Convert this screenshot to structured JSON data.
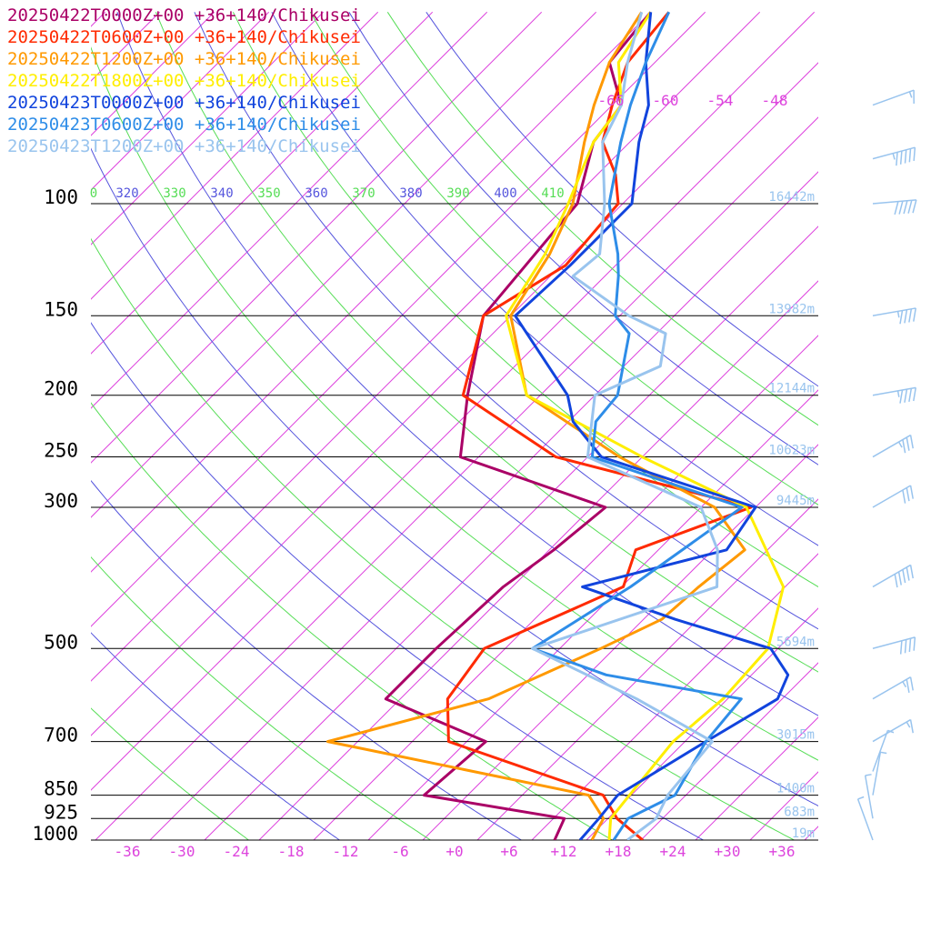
{
  "legend": [
    {
      "label": "20250422T0000Z+00 +36+140/Chikusei",
      "color": "#aa0066"
    },
    {
      "label": "20250422T0600Z+00 +36+140/Chikusei",
      "color": "#ff2a00"
    },
    {
      "label": "20250422T1200Z+00 +36+140/Chikusei",
      "color": "#ff9900"
    },
    {
      "label": "20250422T1800Z+00 +36+140/Chikusei",
      "color": "#ffee00"
    },
    {
      "label": "20250423T0000Z+00 +36+140/Chikusei",
      "color": "#1144dd"
    },
    {
      "label": "20250423T0600Z+00 +36+140/Chikusei",
      "color": "#2e8de8"
    },
    {
      "label": "20250423T1200Z+00 +36+140/Chikusei",
      "color": "#99c4ee"
    }
  ],
  "chart_data": {
    "type": "line",
    "chart_kind": "skew-T temperature sounding",
    "pressure_levels": [
      {
        "p": 100,
        "label": "100",
        "height": "16442m"
      },
      {
        "p": 150,
        "label": "150",
        "height": "13982m"
      },
      {
        "p": 200,
        "label": "200",
        "height": "12144m"
      },
      {
        "p": 250,
        "label": "250",
        "height": "10623m"
      },
      {
        "p": 300,
        "label": "300",
        "height": "9445m"
      },
      {
        "p": 500,
        "label": "500",
        "height": "5694m"
      },
      {
        "p": 700,
        "label": "700",
        "height": "3015m"
      },
      {
        "p": 850,
        "label": "850",
        "height": "1400m"
      },
      {
        "p": 925,
        "label": "925",
        "height": "683m"
      },
      {
        "p": 1000,
        "label": "1000",
        "height": "19m"
      }
    ],
    "temperature_ticks": [
      "-36",
      "-30",
      "-24",
      "-18",
      "-12",
      "-6",
      "+0",
      "+6",
      "+12",
      "+18",
      "+24",
      "+30",
      "+36"
    ],
    "skewed_isotherm_labels": [
      "-66",
      "-60",
      "-54",
      "-48"
    ],
    "theta_labels": [
      {
        "t": "0",
        "c": "#55dd55"
      },
      {
        "t": "320",
        "c": "#5555dd"
      },
      {
        "t": "330",
        "c": "#55dd55"
      },
      {
        "t": "340",
        "c": "#5555dd"
      },
      {
        "t": "350",
        "c": "#55dd55"
      },
      {
        "t": "360",
        "c": "#5555dd"
      },
      {
        "t": "370",
        "c": "#55dd55"
      },
      {
        "t": "380",
        "c": "#5555dd"
      },
      {
        "t": "390",
        "c": "#55dd55"
      },
      {
        "t": "400",
        "c": "#5555dd"
      },
      {
        "t": "410",
        "c": "#55dd55"
      }
    ],
    "series": [
      {
        "name": "20250422T0000Z+00 +36+140/Chikusei",
        "color": "#aa0066",
        "points": [
          [
            1000,
            10.5
          ],
          [
            925,
            9.2
          ],
          [
            850,
            -8.8
          ],
          [
            700,
            -7.9
          ],
          [
            600,
            -23.6
          ],
          [
            500,
            -23.6
          ],
          [
            400,
            -23.0
          ],
          [
            350,
            -21.5
          ],
          [
            300,
            -20.5
          ],
          [
            250,
            -42
          ],
          [
            200,
            -48
          ],
          [
            150,
            -55
          ],
          [
            100,
            -57
          ],
          [
            80,
            -62
          ],
          [
            70,
            -63
          ],
          [
            60,
            -69
          ],
          [
            50,
            -70
          ]
        ]
      },
      {
        "name": "20250422T0600Z+00 +36+140/Chikusei",
        "color": "#ff2a00",
        "points": [
          [
            1000,
            20.2
          ],
          [
            925,
            15.0
          ],
          [
            850,
            10.9
          ],
          [
            700,
            -12.0
          ],
          [
            600,
            -16.8
          ],
          [
            500,
            -18.3
          ],
          [
            400,
            -9.8
          ],
          [
            350,
            -12.5
          ],
          [
            300,
            -4.5
          ],
          [
            250,
            -31.5
          ],
          [
            200,
            -48.5
          ],
          [
            150,
            -55.0
          ],
          [
            125,
            -51.5
          ],
          [
            100,
            -52.5
          ],
          [
            90,
            -56
          ],
          [
            80,
            -61
          ],
          [
            70,
            -64
          ],
          [
            60,
            -67
          ],
          [
            50,
            -68
          ]
        ]
      },
      {
        "name": "20250422T1200Z+00 +36+140/Chikusei",
        "color": "#ff9900",
        "points": [
          [
            1000,
            14.6
          ],
          [
            925,
            13.5
          ],
          [
            850,
            9.3
          ],
          [
            700,
            -25.3
          ],
          [
            600,
            -12.3
          ],
          [
            500,
            -5.5
          ],
          [
            450,
            -2.0
          ],
          [
            400,
            -1.5
          ],
          [
            350,
            -0.5
          ],
          [
            300,
            -8.5
          ],
          [
            250,
            -24.5
          ],
          [
            200,
            -41.5
          ],
          [
            150,
            -52.0
          ],
          [
            120,
            -54.5
          ],
          [
            100,
            -57.5
          ],
          [
            80,
            -63
          ],
          [
            70,
            -66
          ],
          [
            60,
            -69
          ],
          [
            50,
            -71
          ]
        ]
      },
      {
        "name": "20250422T1800Z+00 +36+140/Chikusei",
        "color": "#ffee00",
        "points": [
          [
            1000,
            16.5
          ],
          [
            925,
            14.3
          ],
          [
            850,
            13.8
          ],
          [
            700,
            12.7
          ],
          [
            600,
            13.5
          ],
          [
            500,
            12.9
          ],
          [
            400,
            7.8
          ],
          [
            300,
            -5.0
          ],
          [
            250,
            -22.0
          ],
          [
            200,
            -41.5
          ],
          [
            150,
            -52.5
          ],
          [
            120,
            -55.0
          ],
          [
            100,
            -58.0
          ],
          [
            80,
            -62
          ],
          [
            70,
            -63
          ],
          [
            60,
            -68
          ],
          [
            50,
            -70
          ]
        ]
      },
      {
        "name": "20250423T0000Z+00 +36+140/Chikusei",
        "color": "#1144dd",
        "points": [
          [
            1000,
            13.3
          ],
          [
            925,
            13.0
          ],
          [
            850,
            12.5
          ],
          [
            700,
            16.3
          ],
          [
            600,
            19.5
          ],
          [
            550,
            18.0
          ],
          [
            500,
            13.2
          ],
          [
            450,
            -0.5
          ],
          [
            400,
            -14.3
          ],
          [
            350,
            -2.5
          ],
          [
            300,
            -4.0
          ],
          [
            250,
            -26.5
          ],
          [
            220,
            -33.5
          ],
          [
            200,
            -37.0
          ],
          [
            150,
            -51.5
          ],
          [
            125,
            -51.0
          ],
          [
            100,
            -51.0
          ],
          [
            80,
            -57
          ],
          [
            70,
            -60
          ],
          [
            60,
            -65
          ],
          [
            50,
            -70
          ]
        ]
      },
      {
        "name": "20250423T0600Z+00 +36+140/Chikusei",
        "color": "#2e8de8",
        "points": [
          [
            1000,
            17.0
          ],
          [
            925,
            16.2
          ],
          [
            850,
            18.8
          ],
          [
            700,
            16.3
          ],
          [
            600,
            15.5
          ],
          [
            550,
            -2.0
          ],
          [
            500,
            -13.0
          ],
          [
            400,
            -9.0
          ],
          [
            300,
            -5.5
          ],
          [
            250,
            -27.5
          ],
          [
            220,
            -31.0
          ],
          [
            200,
            -31.5
          ],
          [
            160,
            -37.0
          ],
          [
            150,
            -40.5
          ],
          [
            130,
            -44.5
          ],
          [
            120,
            -47.0
          ],
          [
            100,
            -53.5
          ],
          [
            80,
            -59
          ],
          [
            70,
            -62
          ],
          [
            60,
            -65
          ],
          [
            50,
            -68
          ]
        ]
      },
      {
        "name": "20250423T1200Z+00 +36+140/Chikusei",
        "color": "#99c4ee",
        "points": [
          [
            1000,
            18.5
          ],
          [
            925,
            19.3
          ],
          [
            850,
            18.0
          ],
          [
            700,
            17.0
          ],
          [
            600,
            4.0
          ],
          [
            500,
            -13.0
          ],
          [
            400,
            0.5
          ],
          [
            350,
            -3.5
          ],
          [
            300,
            -10.0
          ],
          [
            250,
            -28.0
          ],
          [
            200,
            -34.0
          ],
          [
            180,
            -30.0
          ],
          [
            160,
            -33.0
          ],
          [
            150,
            -39.0
          ],
          [
            130,
            -49.5
          ],
          [
            120,
            -49.0
          ],
          [
            100,
            -54.0
          ],
          [
            80,
            -61
          ],
          [
            70,
            -63
          ],
          [
            60,
            -67
          ],
          [
            50,
            -71
          ]
        ]
      }
    ],
    "winds": [
      {
        "p": 70,
        "speed_kt": 15,
        "dir": 250
      },
      {
        "p": 85,
        "speed_kt": 55,
        "dir": 255
      },
      {
        "p": 100,
        "speed_kt": 50,
        "dir": 265
      },
      {
        "p": 150,
        "speed_kt": 45,
        "dir": 260
      },
      {
        "p": 200,
        "speed_kt": 45,
        "dir": 260
      },
      {
        "p": 250,
        "speed_kt": 35,
        "dir": 240
      },
      {
        "p": 300,
        "speed_kt": 30,
        "dir": 240
      },
      {
        "p": 400,
        "speed_kt": 50,
        "dir": 240
      },
      {
        "p": 500,
        "speed_kt": 40,
        "dir": 255
      },
      {
        "p": 600,
        "speed_kt": 25,
        "dir": 240
      },
      {
        "p": 700,
        "speed_kt": 15,
        "dir": 240
      },
      {
        "p": 780,
        "speed_kt": 5,
        "dir": 200
      },
      {
        "p": 850,
        "speed_kt": 5,
        "dir": 190
      },
      {
        "p": 925,
        "speed_kt": 5,
        "dir": 170
      },
      {
        "p": 1000,
        "speed_kt": 5,
        "dir": 160
      }
    ]
  }
}
